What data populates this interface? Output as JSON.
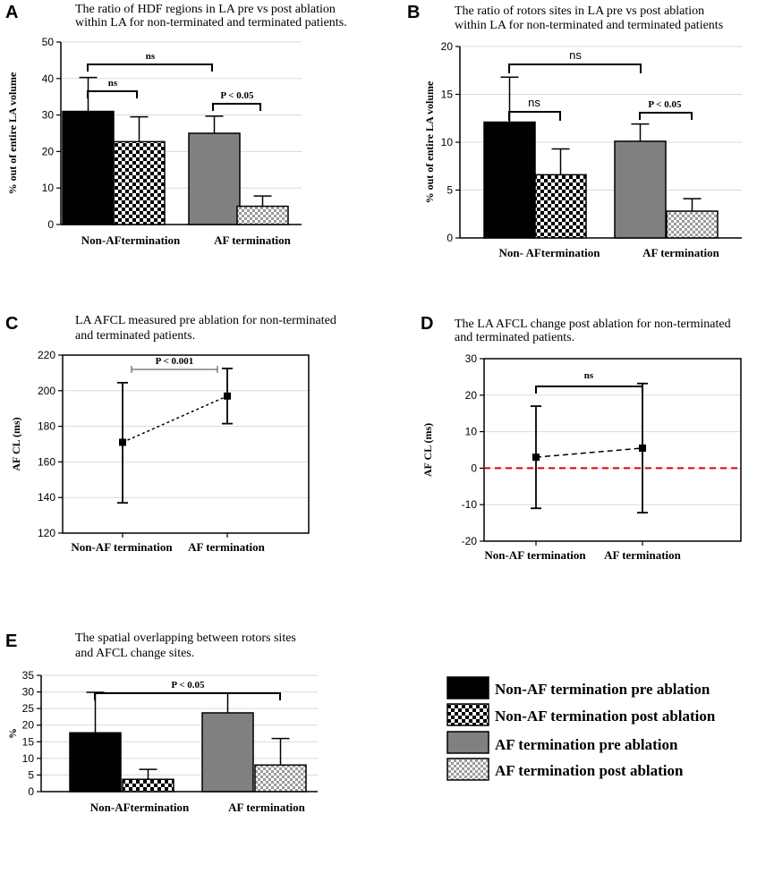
{
  "chart_data": [
    {
      "id": "A",
      "type": "bar",
      "letter": "A",
      "title_lines": [
        "The ratio of  HDF regions  in LA  pre vs post ablation",
        "within LA for non-terminated and terminated patients."
      ],
      "ylabel": "% out of entire LA volume",
      "ylim": [
        0,
        50
      ],
      "yticks": [
        0,
        10,
        20,
        30,
        40,
        50
      ],
      "groups": [
        "Non-AFtermination",
        "AF termination"
      ],
      "series": [
        {
          "name": "Non-AF termination pre ablation",
          "values": [
            31,
            25
          ],
          "errors": [
            9.3,
            4.7
          ]
        },
        {
          "name": "Non-AF termination post ablation",
          "values": [
            22.7,
            5
          ],
          "errors": [
            6.8,
            2.8
          ]
        }
      ],
      "annotations": [
        {
          "text": "ns",
          "kind": "between-groups"
        },
        {
          "text": "ns",
          "kind": "within-group",
          "group": 0
        },
        {
          "text": "P < 0.05",
          "kind": "within-group",
          "group": 1
        }
      ]
    },
    {
      "id": "B",
      "type": "bar",
      "letter": "B",
      "title_lines": [
        "The ratio of  rotors sites in LA  pre vs post ablation",
        "within LA for non-terminated and terminated patients"
      ],
      "ylabel": "% out of entire LA volume",
      "ylim": [
        0,
        20
      ],
      "yticks": [
        0,
        5,
        10,
        15,
        20
      ],
      "groups": [
        "Non-  AFtermination",
        "AF  termination"
      ],
      "series": [
        {
          "name": "pre ablation",
          "values": [
            12.1,
            10.1
          ],
          "errors": [
            4.7,
            1.8
          ]
        },
        {
          "name": "post ablation",
          "values": [
            6.6,
            2.8
          ],
          "errors": [
            2.7,
            1.3
          ]
        }
      ],
      "annotations": [
        {
          "text": "ns",
          "kind": "between-groups"
        },
        {
          "text": "ns",
          "kind": "within-group",
          "group": 0
        },
        {
          "text": "P < 0.05",
          "kind": "within-group",
          "group": 1
        }
      ]
    },
    {
      "id": "C",
      "type": "line",
      "letter": "C",
      "title_lines": [
        "LA  AFCL measured pre ablation for non-terminated",
        "and terminated patients."
      ],
      "ylabel": "AF CL (ms)",
      "ylim": [
        120,
        220
      ],
      "yticks": [
        120,
        140,
        160,
        180,
        200,
        220
      ],
      "categories": [
        "Non-AF termination",
        "AF termination"
      ],
      "values": [
        171,
        197
      ],
      "lower": [
        137,
        181.5
      ],
      "upper": [
        204.5,
        212.5
      ],
      "zero_line": false,
      "annotation": "P < 0.001"
    },
    {
      "id": "D",
      "type": "line",
      "letter": "D",
      "title_lines": [
        "The LA  AFCL change post ablation for non-terminated",
        "and terminated patients."
      ],
      "ylabel": "AF CL (ms)",
      "ylim": [
        -20,
        30
      ],
      "yticks": [
        -20,
        -10,
        0,
        10,
        20,
        30
      ],
      "categories": [
        "Non-AF termination",
        "AF termination"
      ],
      "values": [
        3,
        5.5
      ],
      "lower": [
        -11,
        -12.2
      ],
      "upper": [
        17,
        23.2
      ],
      "zero_line": true,
      "annotation": "ns"
    },
    {
      "id": "E",
      "type": "bar",
      "letter": "E",
      "title_lines": [
        "The spatial overlapping between rotors sites",
        "and AFCL change sites."
      ],
      "ylabel": "%",
      "ylim": [
        0,
        35
      ],
      "yticks": [
        0,
        5,
        10,
        15,
        20,
        25,
        30,
        35
      ],
      "groups": [
        "Non-AFtermination",
        "AF termination"
      ],
      "series": [
        {
          "name": "pre ablation",
          "values": [
            17.7,
            23.7
          ],
          "errors": [
            12.2,
            5.9
          ]
        },
        {
          "name": "post ablation",
          "values": [
            3.7,
            8
          ],
          "errors": [
            3,
            8
          ]
        }
      ],
      "annotations": [
        {
          "text": "P < 0.05",
          "kind": "between-groups"
        }
      ]
    }
  ],
  "legend": [
    {
      "label": "Non-AF termination pre ablation",
      "style": "black"
    },
    {
      "label": "Non-AF termination post ablation",
      "style": "checker-dark"
    },
    {
      "label": "AF termination pre ablation",
      "style": "gray"
    },
    {
      "label": "AF termination post ablation",
      "style": "checker-light"
    }
  ],
  "colors": {
    "black": "#000000",
    "gray": "#808080",
    "zero_line": "#e00000",
    "grid": "#d9d9d9"
  }
}
